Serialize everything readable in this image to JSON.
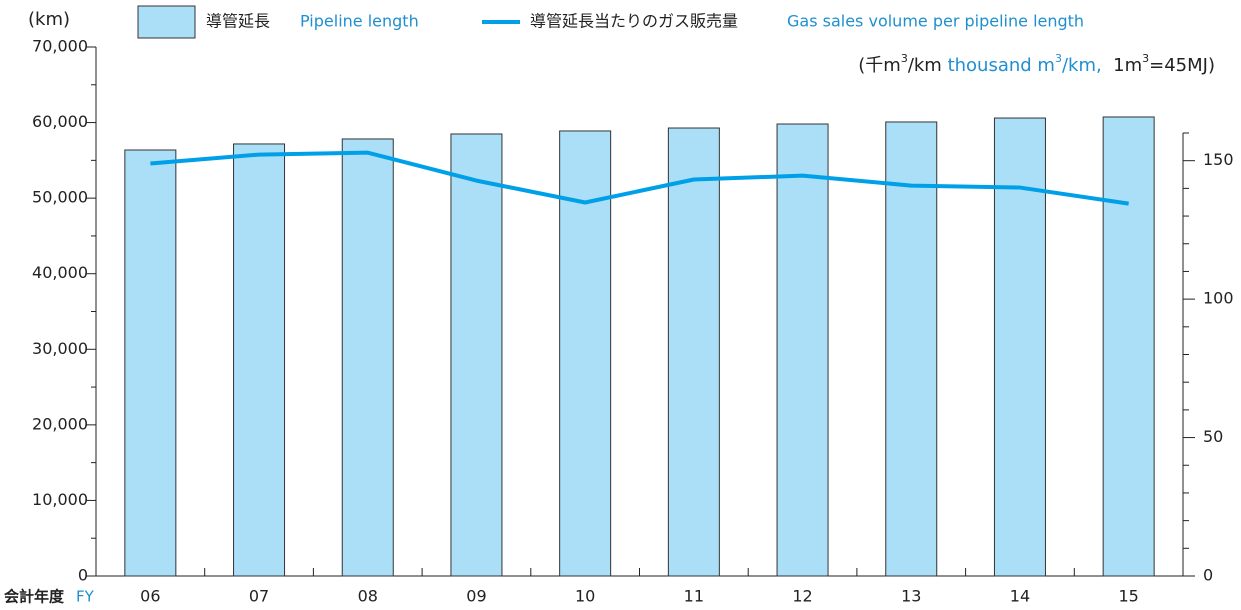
{
  "chart_data": {
    "type": "bar_line",
    "y_unit": "(km)",
    "y2_unit_parts": [
      "(千m",
      "3",
      "/km ",
      "thousand m",
      "3",
      "/km,",
      "  1m",
      "3",
      "=45MJ)"
    ],
    "x_label_jp": "会計年度",
    "x_label_en": "FY",
    "categories": [
      "06",
      "07",
      "08",
      "09",
      "10",
      "11",
      "12",
      "13",
      "14",
      "15"
    ],
    "series": [
      {
        "name": "導管延長",
        "name_en": "Pipeline length",
        "color": "#aadff7",
        "values": [
          56370,
          57170,
          57830,
          58490,
          58890,
          59280,
          59810,
          60080,
          60600,
          60740
        ]
      },
      {
        "name": "導管延長当たりのガス販売量",
        "name_en": "Gas sales volume per pipeline length",
        "color": "#00a0e9",
        "axis": "y2",
        "values": [
          149,
          152.2,
          152.9,
          142.8,
          134.9,
          143.2,
          144.6,
          141,
          140.3,
          134.5
        ]
      }
    ],
    "ylim": [
      0,
      70000
    ],
    "yticks": [
      0,
      {
        "value": 10000,
        "label": "10,000"
      },
      {
        "value": 20000,
        "label": "20,000"
      },
      {
        "value": 30000,
        "label": "30,000"
      },
      {
        "value": 40000,
        "label": "40,000"
      },
      {
        "value": 50000,
        "label": "50,000"
      },
      {
        "value": 60000,
        "label": "60,000"
      },
      {
        "value": 70000,
        "label": "70,000"
      }
    ],
    "y2lim": [
      0,
      160
    ],
    "y2ticks": [
      0,
      50,
      100,
      150
    ]
  }
}
